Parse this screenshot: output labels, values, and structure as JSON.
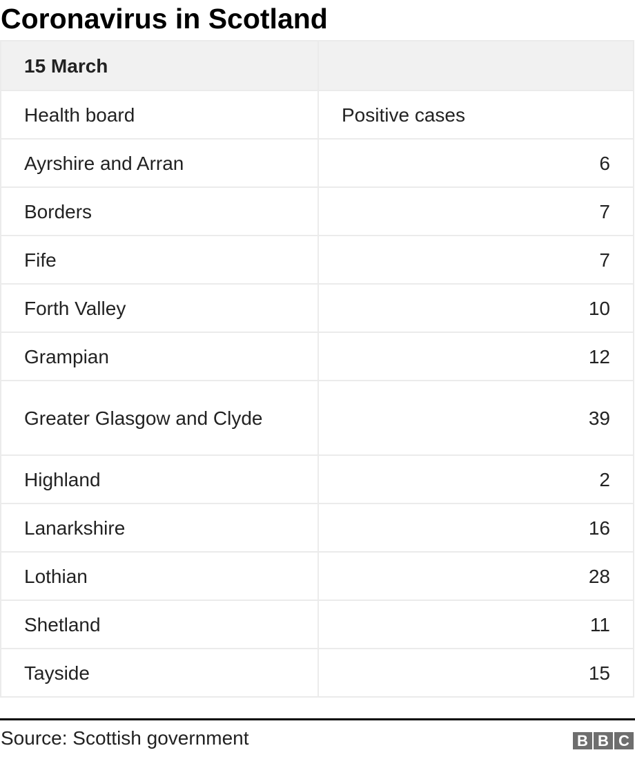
{
  "title": "Coronavirus in Scotland",
  "table": {
    "date_header": "15 March",
    "columns": [
      "Health board",
      "Positive cases"
    ],
    "rows": [
      {
        "board": "Ayrshire and Arran",
        "cases": "6"
      },
      {
        "board": "Borders",
        "cases": "7"
      },
      {
        "board": "Fife",
        "cases": "7"
      },
      {
        "board": "Forth Valley",
        "cases": "10"
      },
      {
        "board": "Grampian",
        "cases": "12"
      },
      {
        "board": "Greater Glasgow and Clyde",
        "cases": "39"
      },
      {
        "board": "Highland",
        "cases": "2"
      },
      {
        "board": "Lanarkshire",
        "cases": "16"
      },
      {
        "board": "Lothian",
        "cases": "28"
      },
      {
        "board": "Shetland",
        "cases": "11"
      },
      {
        "board": "Tayside",
        "cases": "15"
      }
    ]
  },
  "source": "Source: Scottish government",
  "logo": "BBC"
}
